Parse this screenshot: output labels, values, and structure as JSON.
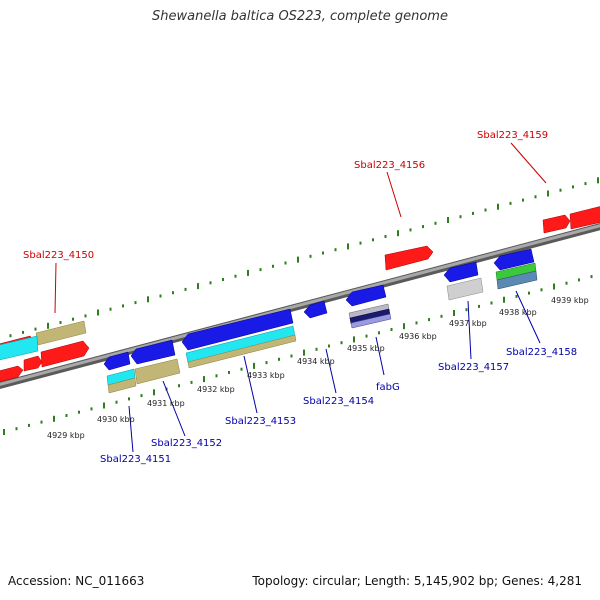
{
  "title": "Shewanella baltica OS223, complete genome",
  "footer": {
    "accession": "Accession: NC_011663",
    "summary": "Topology: circular; Length: 5,145,902 bp; Genes: 4,281"
  },
  "colors": {
    "backbone": "#8a8a8a",
    "tick": "#2f7d1e",
    "gene_forward": "#ff1a1a",
    "gene_reverse": "#1a1ae6",
    "cyan": "#22e6f0",
    "khaki": "#c2b676",
    "gray_feature": "#c8c8c8",
    "green_feature": "#3cc83c",
    "forward_label": "#cc0000",
    "reverse_label": "#0000aa",
    "kbp_label": "#222222"
  },
  "kbp_labels": [
    "4929 kbp",
    "4930 kbp",
    "4931 kbp",
    "4932 kbp",
    "4933 kbp",
    "4934 kbp",
    "4935 kbp",
    "4936 kbp",
    "4937 kbp",
    "4938 kbp",
    "4939 kbp"
  ],
  "forward_gene_labels": [
    "Sbal223_4150",
    "Sbal223_4156",
    "Sbal223_4159"
  ],
  "reverse_gene_labels": [
    "Sbal223_4151",
    "Sbal223_4152",
    "Sbal223_4153",
    "Sbal223_4154",
    "fabG",
    "Sbal223_4157",
    "Sbal223_4158"
  ]
}
